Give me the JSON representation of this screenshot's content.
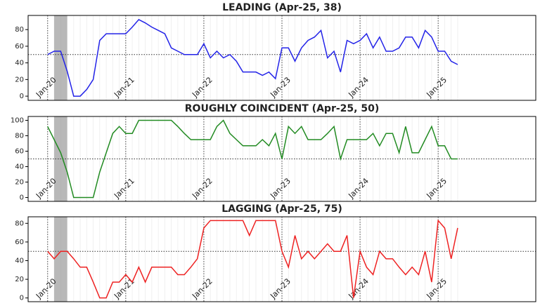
{
  "chart_data": [
    {
      "type": "line",
      "title": "LEADING (Apr-25, 38)",
      "categories": [
        "Jan-20",
        null,
        null,
        null,
        null,
        null,
        null,
        null,
        null,
        null,
        null,
        null,
        "Jan-21",
        null,
        null,
        null,
        null,
        null,
        null,
        null,
        null,
        null,
        null,
        null,
        "Jan-22",
        null,
        null,
        null,
        null,
        null,
        null,
        null,
        null,
        null,
        null,
        null,
        "Jan-23",
        null,
        null,
        null,
        null,
        null,
        null,
        null,
        null,
        null,
        null,
        null,
        "Jan-24",
        null,
        null,
        null,
        null,
        null,
        null,
        null,
        null,
        null,
        null,
        null,
        "Jan-25",
        null,
        null,
        null
      ],
      "values": [
        50,
        54,
        54,
        30,
        0,
        0,
        8,
        20,
        67,
        75,
        75,
        75,
        75,
        83,
        92,
        88,
        83,
        79,
        75,
        58,
        54,
        50,
        50,
        50,
        63,
        46,
        54,
        46,
        50,
        42,
        29,
        29,
        29,
        25,
        29,
        21,
        58,
        58,
        42,
        58,
        67,
        71,
        79,
        46,
        54,
        29,
        67,
        63,
        67,
        75,
        58,
        71,
        54,
        54,
        58,
        71,
        71,
        58,
        79,
        71,
        54,
        54,
        42,
        38
      ],
      "color": "#2323e8",
      "hline": 50,
      "ylim": [
        -5,
        97
      ],
      "yticks": [
        0,
        20,
        40,
        60,
        80
      ]
    },
    {
      "type": "line",
      "title": "ROUGHLY COINCIDENT (Apr-25, 50)",
      "categories": [
        "Jan-20",
        null,
        null,
        null,
        null,
        null,
        null,
        null,
        null,
        null,
        null,
        null,
        "Jan-21",
        null,
        null,
        null,
        null,
        null,
        null,
        null,
        null,
        null,
        null,
        null,
        "Jan-22",
        null,
        null,
        null,
        null,
        null,
        null,
        null,
        null,
        null,
        null,
        null,
        "Jan-23",
        null,
        null,
        null,
        null,
        null,
        null,
        null,
        null,
        null,
        null,
        null,
        "Jan-24",
        null,
        null,
        null,
        null,
        null,
        null,
        null,
        null,
        null,
        null,
        null,
        "Jan-25",
        null,
        null,
        null
      ],
      "values": [
        92,
        75,
        58,
        33,
        0,
        0,
        0,
        0,
        33,
        58,
        83,
        92,
        83,
        83,
        100,
        100,
        100,
        100,
        100,
        100,
        92,
        83,
        75,
        75,
        75,
        75,
        92,
        100,
        83,
        75,
        67,
        67,
        67,
        75,
        67,
        83,
        50,
        92,
        83,
        92,
        75,
        75,
        75,
        83,
        92,
        50,
        75,
        75,
        75,
        75,
        83,
        67,
        83,
        83,
        58,
        92,
        58,
        58,
        75,
        92,
        67,
        67,
        50,
        50
      ],
      "color": "#228b22",
      "hline": 50,
      "ylim": [
        -5,
        105
      ],
      "yticks": [
        0,
        20,
        40,
        60,
        80,
        100
      ]
    },
    {
      "type": "line",
      "title": "LAGGING (Apr-25, 75)",
      "categories": [
        "Jan-20",
        null,
        null,
        null,
        null,
        null,
        null,
        null,
        null,
        null,
        null,
        null,
        "Jan-21",
        null,
        null,
        null,
        null,
        null,
        null,
        null,
        null,
        null,
        null,
        null,
        "Jan-22",
        null,
        null,
        null,
        null,
        null,
        null,
        null,
        null,
        null,
        null,
        null,
        "Jan-23",
        null,
        null,
        null,
        null,
        null,
        null,
        null,
        null,
        null,
        null,
        null,
        "Jan-24",
        null,
        null,
        null,
        null,
        null,
        null,
        null,
        null,
        null,
        null,
        null,
        "Jan-25",
        null,
        null,
        null
      ],
      "values": [
        50,
        42,
        50,
        50,
        42,
        33,
        33,
        17,
        0,
        0,
        17,
        17,
        25,
        17,
        33,
        17,
        33,
        33,
        33,
        33,
        25,
        25,
        33,
        42,
        75,
        83,
        83,
        83,
        83,
        83,
        83,
        67,
        83,
        83,
        83,
        83,
        50,
        33,
        67,
        42,
        50,
        42,
        50,
        58,
        50,
        50,
        67,
        0,
        50,
        33,
        25,
        50,
        42,
        42,
        33,
        25,
        33,
        25,
        50,
        17,
        83,
        75,
        42,
        75
      ],
      "color": "#ee2222",
      "hline": 50,
      "ylim": [
        -4,
        87
      ],
      "yticks": [
        0,
        20,
        40,
        60,
        80
      ]
    }
  ]
}
